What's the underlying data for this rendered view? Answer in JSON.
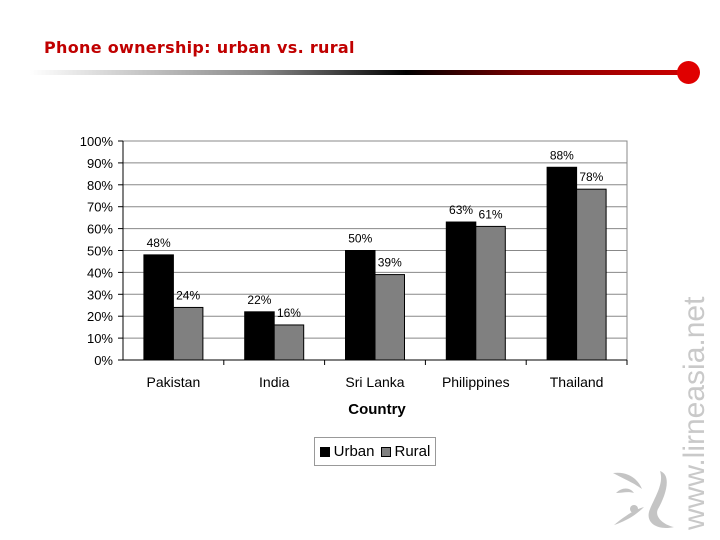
{
  "slide": {
    "title": "Phone ownership: urban vs. rural",
    "watermark": "www.lirneasia.net"
  },
  "chart_data": {
    "type": "bar",
    "title": "",
    "xlabel": "Country",
    "ylabel": "",
    "ylim": [
      0,
      100
    ],
    "yticks": [
      "0%",
      "10%",
      "20%",
      "30%",
      "40%",
      "50%",
      "60%",
      "70%",
      "80%",
      "90%",
      "100%"
    ],
    "categories": [
      "Pakistan",
      "India",
      "Sri Lanka",
      "Philippines",
      "Thailand"
    ],
    "series": [
      {
        "name": "Urban",
        "color": "#000000",
        "values": [
          48,
          22,
          50,
          63,
          88
        ],
        "labels": [
          "48%",
          "22%",
          "50%",
          "63%",
          "88%"
        ]
      },
      {
        "name": "Rural",
        "color": "#808080",
        "values": [
          24,
          16,
          39,
          61,
          78
        ],
        "labels": [
          "24%",
          "16%",
          "39%",
          "61%",
          "78%"
        ]
      }
    ],
    "grid": true,
    "legend": "bottom"
  }
}
